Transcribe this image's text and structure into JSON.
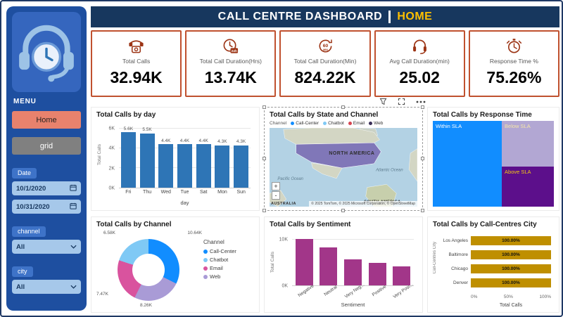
{
  "header": {
    "title": "CALL CENTRE DASHBOARD",
    "page": "HOME"
  },
  "sidebar": {
    "menu_label": "MENU",
    "home_button": "Home",
    "grid_button": "grid",
    "date_label": "Date",
    "date_from": "10/1/2020",
    "date_to": "10/31/2020",
    "channel_label": "channel",
    "channel_value": "All",
    "city_label": "city",
    "city_value": "All"
  },
  "kpis": [
    {
      "icon": "phone-icon",
      "label": "Total Calls",
      "value": "32.94K"
    },
    {
      "icon": "clock-24h-icon",
      "label": "Total Call Duration(Hrs)",
      "value": "13.74K"
    },
    {
      "icon": "timer-60min-icon",
      "label": "Total Call Duration(Min)",
      "value": "824.22K"
    },
    {
      "icon": "headset-icon",
      "label": "Avg Call Duration(min)",
      "value": "25.02"
    },
    {
      "icon": "stopwatch-icon",
      "label": "Response Time %",
      "value": "75.26%"
    }
  ],
  "visual_toolbar": {
    "icons": [
      "filter-icon",
      "focus-mode-icon",
      "more-options-icon"
    ]
  },
  "chart_data": [
    {
      "type": "bar",
      "title": "Total Calls by day",
      "categories": [
        "Fri",
        "Thu",
        "Wed",
        "Tue",
        "Sat",
        "Mon",
        "Sun"
      ],
      "values": [
        5.6,
        5.5,
        4.4,
        4.4,
        4.4,
        4.3,
        4.3
      ],
      "value_labels": [
        "5.6K",
        "5.5K",
        "4.4K",
        "4.4K",
        "4.4K",
        "4.3K",
        "4.3K"
      ],
      "xlabel": "day",
      "ylabel": "Total Calls",
      "ylim": [
        0,
        6.2
      ],
      "yticks": [
        {
          "label": "6K",
          "value": 6
        },
        {
          "label": "4K",
          "value": 4
        },
        {
          "label": "2K",
          "value": 2
        },
        {
          "label": "0K",
          "value": 0
        }
      ],
      "bar_color": "#2E75B6"
    },
    {
      "type": "map",
      "title": "Total Calls by State and Channel",
      "legend_title": "Channel",
      "legend": [
        {
          "label": "Call-Center",
          "color": "#118DFF"
        },
        {
          "label": "Chatbot",
          "color": "#7FC9F5"
        },
        {
          "label": "Email",
          "color": "#D64550"
        },
        {
          "label": "Web",
          "color": "#3A2E58"
        }
      ],
      "labels": {
        "north_america": "NORTH AMERICA",
        "pacific": "Pacific Ocean",
        "atlantic": "Atlantic Ocean",
        "south_america": "SOUTH AMERICA",
        "australia": "AUSTRALIA"
      },
      "attribution": "© 2025 TomTom, © 2025 Microsoft Corporation, © OpenStreetMap",
      "zoom_in": "+",
      "zoom_out": "-"
    },
    {
      "type": "treemap",
      "title": "Total Calls by Response Time",
      "blocks": [
        {
          "label": "Within SLA",
          "color": "#118DFF",
          "text_color": "#FFFFFF"
        },
        {
          "label": "Below SLA",
          "color": "#B2A7D3",
          "text_color": "#F5E6A8"
        },
        {
          "label": "Above SLA",
          "color": "#5C0F8B",
          "text_color": "#F2C811"
        }
      ]
    },
    {
      "type": "donut",
      "title": "Total Calls by Channel",
      "legend_title": "Channel",
      "slices": [
        {
          "label": "Call-Center",
          "value": "10.64K",
          "pct": 32.29,
          "color": "#118DFF"
        },
        {
          "label": "Web",
          "value": "8.26K",
          "pct": 25.06,
          "color": "#A99BD6"
        },
        {
          "label": "Email",
          "value": "7.47K",
          "pct": 22.68,
          "color": "#D9539E"
        },
        {
          "label": "Chatbot",
          "value": "6.58K",
          "pct": 19.96,
          "color": "#7FC9F5"
        }
      ],
      "legend": [
        {
          "label": "Call-Center",
          "color": "#118DFF"
        },
        {
          "label": "Chatbot",
          "color": "#7FC9F5"
        },
        {
          "label": "Email",
          "color": "#D9539E"
        },
        {
          "label": "Web",
          "color": "#A99BD6"
        }
      ]
    },
    {
      "type": "bar",
      "title": "Total Calls by Sentiment",
      "categories": [
        "Negative",
        "Neutral",
        "Very Neg...",
        "Positive",
        "Very Posi..."
      ],
      "values": [
        10.1,
        8.2,
        5.6,
        4.9,
        4.1
      ],
      "xlabel": "Sentiment",
      "ylabel": "Total Calls",
      "ylim": [
        0,
        11
      ],
      "yticks": [
        {
          "label": "10K",
          "value": 10
        },
        {
          "label": "0K",
          "value": 0
        }
      ],
      "bar_color": "#A23689"
    },
    {
      "type": "hbar",
      "title": "Total Calls by Call-Centres City",
      "categories": [
        "Los Angeles",
        "Baltimore",
        "Chicago",
        "Denver"
      ],
      "values": [
        100,
        100,
        100,
        100
      ],
      "value_labels": [
        "100.00%",
        "100.00%",
        "100.00%",
        "100.00%"
      ],
      "xlabel": "Total Calls",
      "ylabel": "Call-Centres City",
      "xticks": [
        "0%",
        "50%",
        "100%"
      ],
      "xlim": [
        0,
        100
      ],
      "bar_color": "#BF8F00"
    }
  ]
}
